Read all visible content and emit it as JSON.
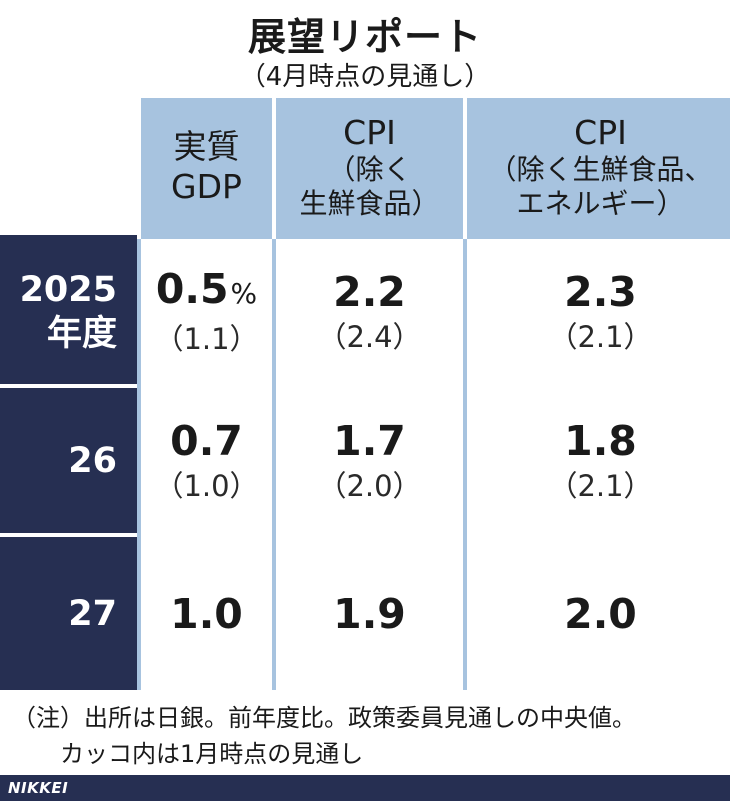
{
  "title": "展望リポート",
  "subtitle": "（4月時点の見通し）",
  "columns": [
    {
      "line1": "実質",
      "line2": "GDP",
      "line3": ""
    },
    {
      "line1": "CPI",
      "line2": "（除く",
      "line3": "生鮮食品）"
    },
    {
      "line1": "CPI",
      "line2": "（除く生鮮食品、",
      "line3": "エネルギー）"
    }
  ],
  "rows": [
    {
      "label1": "2025",
      "label2": "年度",
      "values": [
        {
          "v": "0.5",
          "unit": "%",
          "prev": "（1.1）"
        },
        {
          "v": "2.2",
          "unit": "",
          "prev": "（2.4）"
        },
        {
          "v": "2.3",
          "unit": "",
          "prev": "（2.1）"
        }
      ]
    },
    {
      "label1": "26",
      "label2": "",
      "values": [
        {
          "v": "0.7",
          "unit": "",
          "prev": "（1.0）"
        },
        {
          "v": "1.7",
          "unit": "",
          "prev": "（2.0）"
        },
        {
          "v": "1.8",
          "unit": "",
          "prev": "（2.1）"
        }
      ]
    },
    {
      "label1": "27",
      "label2": "",
      "values": [
        {
          "v": "1.0",
          "unit": "",
          "prev": ""
        },
        {
          "v": "1.9",
          "unit": "",
          "prev": ""
        },
        {
          "v": "2.0",
          "unit": "",
          "prev": ""
        }
      ]
    }
  ],
  "note": {
    "line1": "（注）出所は日銀。前年度比。政策委員見通しの中央値。",
    "line2": "カッコ内は1月時点の見通し"
  },
  "footer": {
    "logo": "NIKKEI"
  },
  "colors": {
    "header_bg": "#a7c3df",
    "rowhead_bg": "#262f52",
    "footer_bg": "#262f52"
  }
}
